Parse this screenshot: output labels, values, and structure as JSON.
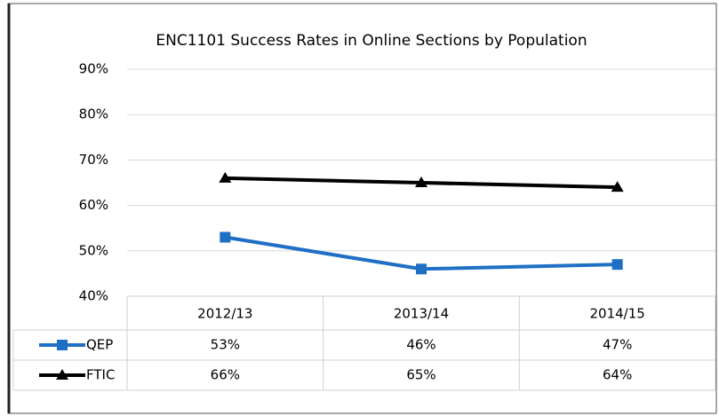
{
  "chart_data": {
    "type": "line",
    "title": "ENC1101 Success Rates in Online Sections by Population",
    "categories": [
      "2012/13",
      "2013/14",
      "2014/15"
    ],
    "series": [
      {
        "name": "QEP",
        "color": "#1f6fc5",
        "marker": "square",
        "values": [
          53,
          46,
          47
        ],
        "value_labels": [
          "53%",
          "46%",
          "47%"
        ]
      },
      {
        "name": "FTIC",
        "color": "#000000",
        "marker": "triangle",
        "values": [
          66,
          65,
          64
        ],
        "value_labels": [
          "66%",
          "65%",
          "64%"
        ]
      }
    ],
    "ylim": [
      40,
      90
    ],
    "yticks": [
      {
        "value": 40,
        "label": "40%"
      },
      {
        "value": 50,
        "label": "50%"
      },
      {
        "value": 60,
        "label": "60%"
      },
      {
        "value": 70,
        "label": "70%"
      },
      {
        "value": 80,
        "label": "80%"
      },
      {
        "value": 90,
        "label": "90%"
      }
    ],
    "grid": true
  }
}
